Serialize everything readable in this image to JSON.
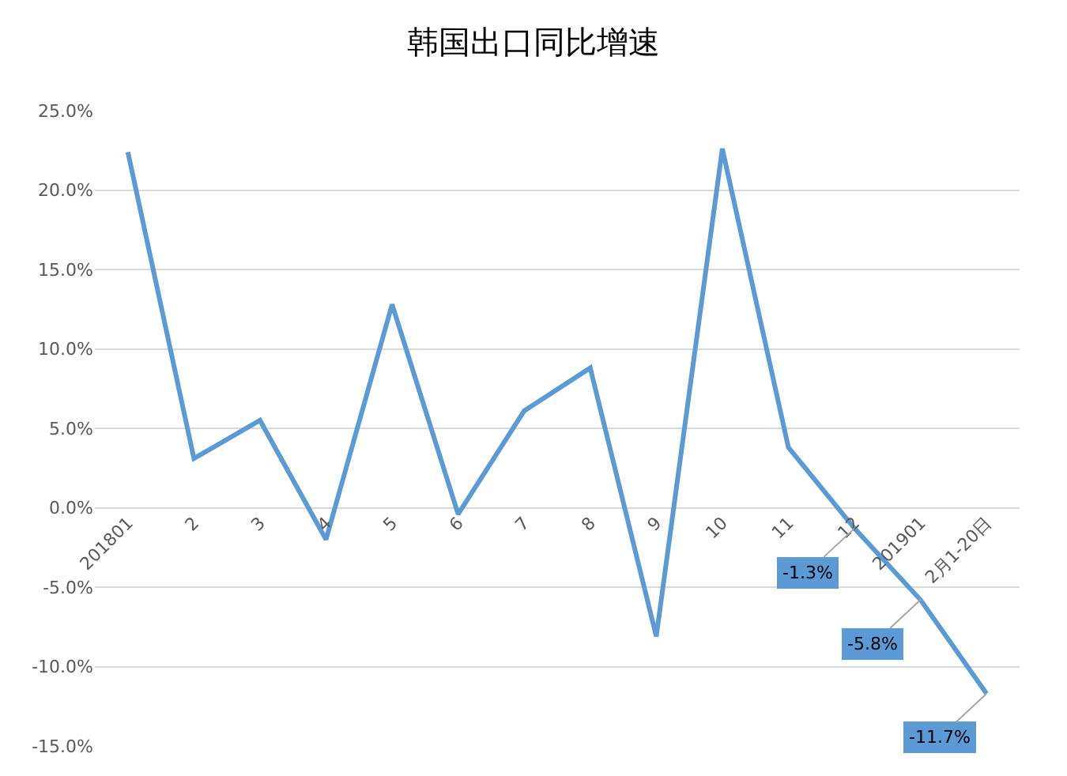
{
  "chart_data": {
    "type": "line",
    "title": "韩国出口同比增速",
    "categories": [
      "201801",
      "2",
      "3",
      "4",
      "5",
      "6",
      "7",
      "8",
      "9",
      "10",
      "11",
      "12",
      "201901",
      "2月1-20日"
    ],
    "series": [
      {
        "color": "#5b9bd5",
        "values": [
          22.4,
          3.1,
          5.5,
          -2.0,
          12.8,
          -0.4,
          6.1,
          8.8,
          -8.1,
          22.6,
          3.8,
          -1.3,
          -5.8,
          -11.7
        ],
        "value_labels": [
          null,
          null,
          null,
          null,
          null,
          null,
          null,
          null,
          null,
          null,
          null,
          "-1.3%",
          "-5.8%",
          "-11.7%"
        ]
      }
    ],
    "ylim": [
      -15,
      25
    ],
    "yticks": [
      {
        "value": -15,
        "label": "-15.0%"
      },
      {
        "value": -10,
        "label": "-10.0%"
      },
      {
        "value": -5,
        "label": "-5.0%"
      },
      {
        "value": 0,
        "label": "0.0%"
      },
      {
        "value": 5,
        "label": "5.0%"
      },
      {
        "value": 10,
        "label": "10.0%"
      },
      {
        "value": 15,
        "label": "15.0%"
      },
      {
        "value": 20,
        "label": "20.0%"
      },
      {
        "value": 25,
        "label": "25.0%"
      }
    ],
    "grid": "y",
    "marker": "none",
    "line_style": "solid"
  }
}
